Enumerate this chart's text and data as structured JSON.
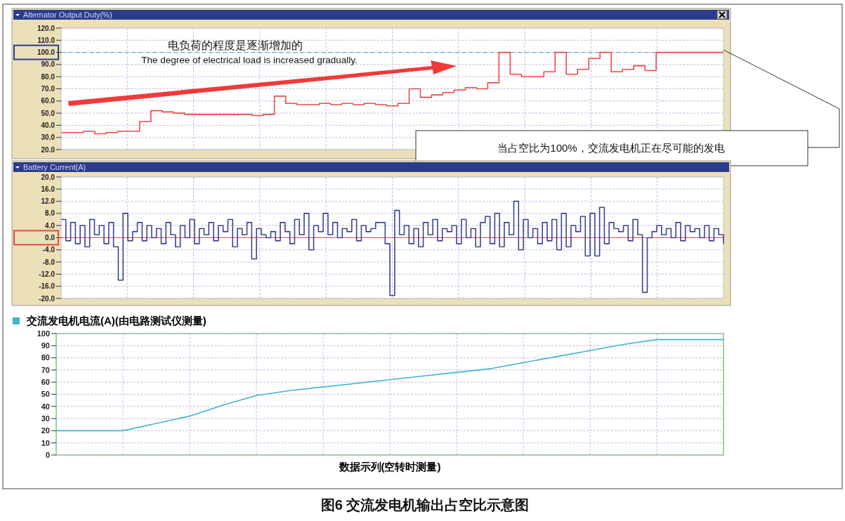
{
  "chart_data": [
    {
      "type": "step",
      "title": "Alternator Output Duty(%)",
      "categories": [
        null,
        null,
        null,
        null,
        null,
        null,
        null,
        null,
        null,
        null,
        null,
        null,
        null,
        null,
        null,
        null,
        null,
        null,
        null,
        null,
        null,
        null,
        null,
        null,
        null,
        null,
        null,
        null,
        null,
        null,
        null,
        null,
        null,
        null,
        null,
        null,
        null,
        null,
        null,
        null,
        null,
        null,
        null,
        null,
        null,
        null,
        null,
        null,
        null,
        null,
        null,
        null,
        null,
        null,
        null,
        null,
        null,
        null,
        null,
        null
      ],
      "series": [
        {
          "color": "#f04848",
          "values": [
            34,
            34,
            35,
            33,
            34,
            35,
            35,
            43,
            52,
            51,
            50,
            49,
            49,
            49,
            49,
            49,
            49,
            48,
            49,
            64,
            58,
            57,
            57,
            58,
            57,
            58,
            57,
            58,
            57,
            56,
            58,
            70,
            63,
            65,
            67,
            69,
            71,
            70,
            75,
            100,
            82,
            80,
            80,
            84,
            100,
            82,
            86,
            95,
            100,
            84,
            86,
            89,
            85,
            100,
            100,
            100,
            100,
            100,
            100,
            100
          ]
        }
      ],
      "ylim": [
        20,
        120
      ],
      "yticks": [
        {
          "value": 20,
          "label": "20.0"
        },
        {
          "value": 30,
          "label": "30.0"
        },
        {
          "value": 40,
          "label": "40.0"
        },
        {
          "value": 50,
          "label": "50.0"
        },
        {
          "value": 60,
          "label": "60.0"
        },
        {
          "value": 70,
          "label": "70.0"
        },
        {
          "value": 80,
          "label": "80.0"
        },
        {
          "value": 90,
          "label": "90.0"
        },
        {
          "value": 100,
          "label": "100.0"
        },
        {
          "value": 110,
          "label": "110.0"
        },
        {
          "value": 120,
          "label": "120.0"
        }
      ],
      "grid": true,
      "tick_labels": "y",
      "ref_lines": [
        {
          "axis": "y",
          "value": 100,
          "color": "#6aa8c8",
          "line_style": "dashed"
        }
      ],
      "annotations": [
        "电负荷的程度是逐渐增加的",
        "The degree of electrical load is increased gradually.",
        "当占空比为100%，交流发电机正在尽可能的发电"
      ]
    },
    {
      "type": "step",
      "title": "Battery Current(A)",
      "categories": [
        null,
        null,
        null,
        null,
        null,
        null,
        null,
        null,
        null,
        null,
        null,
        null,
        null,
        null,
        null,
        null,
        null,
        null,
        null,
        null,
        null,
        null,
        null,
        null,
        null,
        null,
        null,
        null,
        null,
        null,
        null,
        null,
        null,
        null,
        null,
        null,
        null,
        null,
        null,
        null,
        null,
        null,
        null,
        null,
        null,
        null,
        null,
        null,
        null,
        null,
        null,
        null,
        null,
        null,
        null,
        null,
        null,
        null,
        null,
        null,
        null,
        null,
        null,
        null,
        null,
        null,
        null,
        null,
        null,
        null,
        null,
        null,
        null,
        null,
        null,
        null,
        null,
        null,
        null,
        null,
        null,
        null,
        null,
        null,
        null,
        null,
        null,
        null,
        null,
        null,
        null,
        null,
        null,
        null,
        null,
        null,
        null,
        null,
        null,
        null,
        null,
        null,
        null,
        null,
        null,
        null,
        null,
        null,
        null,
        null,
        null,
        null,
        null,
        null,
        null,
        null,
        null,
        null,
        null,
        null,
        null,
        null,
        null,
        null,
        null,
        null,
        null,
        null,
        null,
        null,
        null,
        null,
        null,
        null,
        null,
        null,
        null,
        null,
        null,
        null
      ],
      "series": [
        {
          "color": "#3a4690",
          "values": [
            6,
            -1,
            5,
            -2,
            4,
            -3,
            6,
            1,
            4,
            -2,
            5,
            -3,
            -14,
            8,
            -1,
            2,
            5,
            -1,
            4,
            0,
            3,
            -2,
            5,
            1,
            -3,
            4,
            0,
            6,
            -2,
            3,
            1,
            5,
            -1,
            4,
            2,
            6,
            -3,
            3,
            1,
            5,
            -7,
            3,
            1,
            0,
            2,
            -1,
            5,
            2,
            -2,
            6,
            1,
            8,
            -4,
            4,
            2,
            8,
            1,
            5,
            0,
            3,
            2,
            6,
            -1,
            4,
            2,
            3,
            5,
            5,
            -2,
            -19,
            9,
            1,
            4,
            -2,
            3,
            -3,
            5,
            1,
            6,
            -1,
            3,
            2,
            4,
            -2,
            6,
            0,
            3,
            -3,
            5,
            7,
            -2,
            8,
            -3,
            5,
            1,
            12,
            -4,
            6,
            0,
            3,
            -2,
            5,
            -1,
            6,
            -4,
            8,
            -3,
            4,
            2,
            7,
            -6,
            8,
            -6,
            10,
            -2,
            5,
            3,
            2,
            4,
            -1,
            6,
            1,
            -18,
            0,
            2,
            4,
            1,
            3,
            0,
            5,
            -1,
            4,
            2,
            3,
            0,
            4,
            -1,
            3,
            1,
            -2
          ]
        }
      ],
      "ylim": [
        -20,
        20
      ],
      "yticks": [
        {
          "value": -20,
          "label": "-20.0"
        },
        {
          "value": -16,
          "label": "-16.0"
        },
        {
          "value": -12,
          "label": "-12.0"
        },
        {
          "value": -8,
          "label": "-8.0"
        },
        {
          "value": -4,
          "label": "-4.0"
        },
        {
          "value": 0,
          "label": "0.0"
        },
        {
          "value": 4,
          "label": "4.0"
        },
        {
          "value": 8,
          "label": "8.0"
        },
        {
          "value": 12,
          "label": "12.0"
        },
        {
          "value": 16,
          "label": "16.0"
        },
        {
          "value": 20,
          "label": "20.0"
        }
      ],
      "grid": true,
      "tick_labels": "y",
      "ref_lines": [
        {
          "axis": "y",
          "value": 0,
          "color": "#e04848",
          "line_style": "solid"
        }
      ]
    },
    {
      "type": "line",
      "categories": [
        null,
        null,
        null,
        null,
        null,
        null,
        null,
        null,
        null,
        null,
        null,
        null,
        null,
        null,
        null,
        null,
        null,
        null,
        null,
        null,
        null
      ],
      "series": [
        {
          "name": "交流发电机电流(A)(由电路测试仪测量)",
          "color": "#40b4d0",
          "values": [
            20,
            20,
            20,
            26,
            32,
            41,
            49,
            53,
            56,
            59,
            62,
            65,
            68,
            71,
            76,
            81,
            86,
            91,
            95,
            95,
            95
          ]
        }
      ],
      "ylim": [
        0,
        100
      ],
      "yticks": [
        0,
        10,
        20,
        30,
        40,
        50,
        60,
        70,
        80,
        90,
        100
      ],
      "grid": true,
      "tick_labels": "y",
      "legend": "top left",
      "xlabel": "数据示列(空转时测量)",
      "annotations": [
        "图6 交流发电机输出占空比示意图"
      ]
    }
  ]
}
